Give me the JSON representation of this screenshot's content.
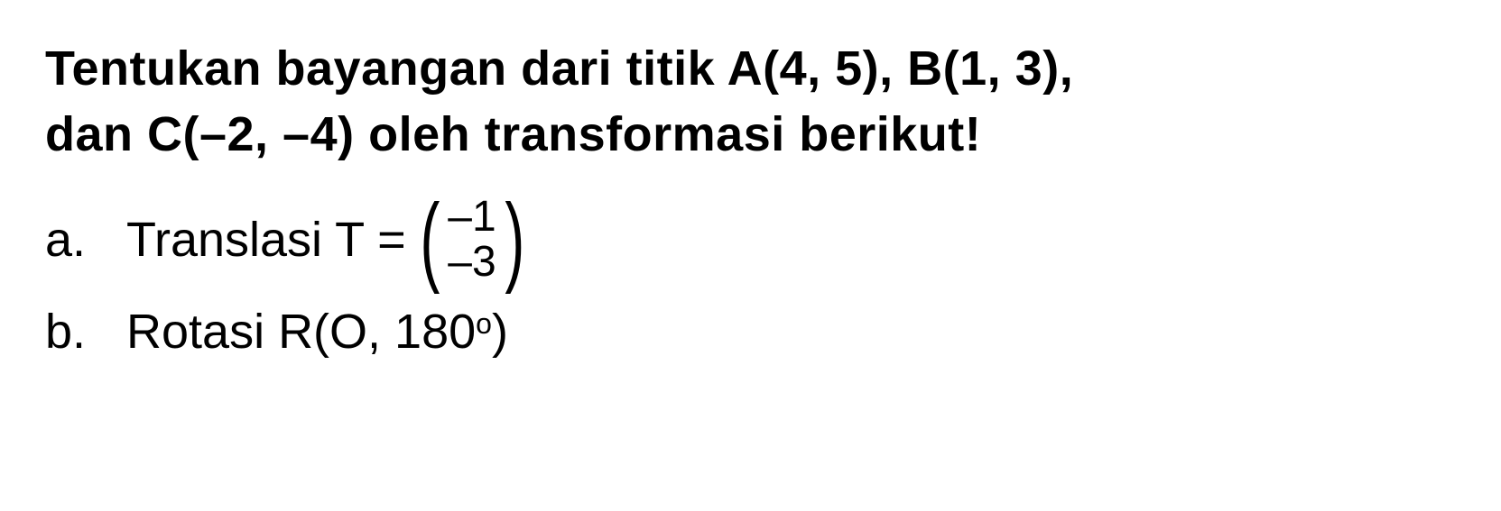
{
  "question": {
    "line1": "Tentukan bayangan dari titik A(4, 5), B(1, 3),",
    "line2": "dan C(–2, –4) oleh transformasi berikut!"
  },
  "items": {
    "a": {
      "label": "a.",
      "prefix": "Translasi T = ",
      "matrix_top": "–1",
      "matrix_bottom": "–3"
    },
    "b": {
      "label": "b.",
      "prefix": "Rotasi R(O, 180",
      "degree": "o",
      "suffix": ")"
    }
  },
  "style": {
    "background_color": "#ffffff",
    "text_color": "#000000",
    "question_fontsize": 54,
    "item_fontsize": 54,
    "matrix_fontsize": 48,
    "font_weight": 600
  }
}
